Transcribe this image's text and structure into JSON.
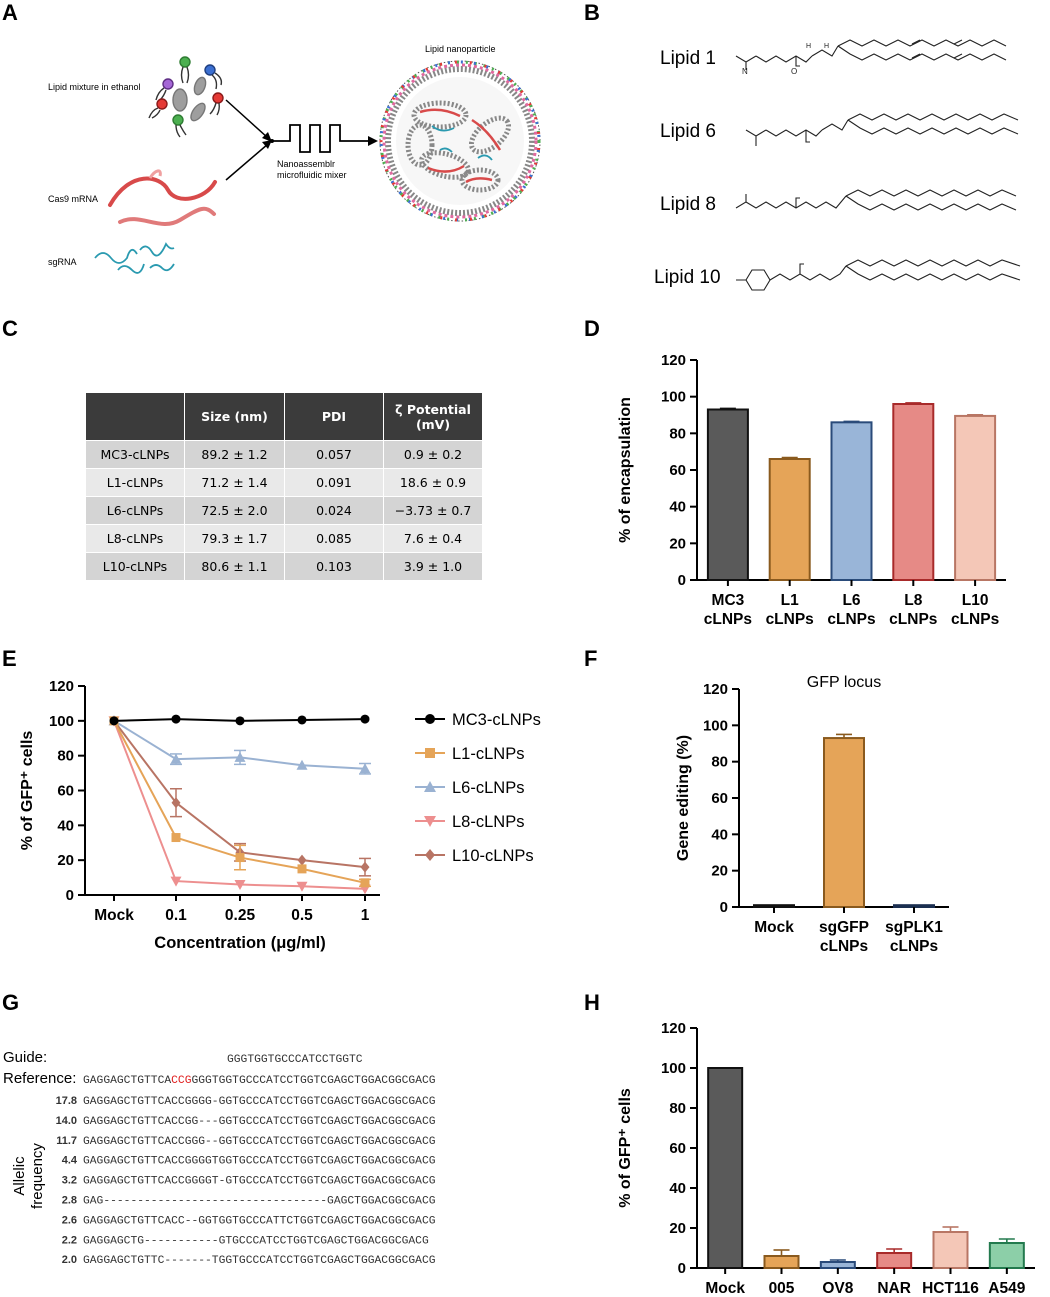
{
  "panels": {
    "a": "A",
    "b": "B",
    "c": "C",
    "d": "D",
    "e": "E",
    "f": "F",
    "g": "G",
    "h": "H"
  },
  "panelA": {
    "lipid_mixture": "Lipid mixture in ethanol",
    "cas9": "Cas9 mRNA",
    "sgrna": "sgRNA",
    "mixer_line1": "Nanoassemblr",
    "mixer_line2": "microfluidic mixer",
    "lnp": "Lipid nanoparticle"
  },
  "panelB": {
    "lipids": [
      "Lipid 1",
      "Lipid 6",
      "Lipid 8",
      "Lipid 10"
    ]
  },
  "panelC": {
    "headers": [
      "",
      "Size (nm)",
      "PDI",
      "ζ Potential (mV)"
    ],
    "rows": [
      {
        "name": "MC3-cLNPs",
        "size": "89.2 ± 1.2",
        "pdi": "0.057",
        "zeta": "0.9 ± 0.2"
      },
      {
        "name": "L1-cLNPs",
        "size": "71.2 ± 1.4",
        "pdi": "0.091",
        "zeta": "18.6 ± 0.9"
      },
      {
        "name": "L6-cLNPs",
        "size": "72.5 ± 2.0",
        "pdi": "0.024",
        "zeta": "−3.73 ± 0.7"
      },
      {
        "name": "L8-cLNPs",
        "size": "79.3 ± 1.7",
        "pdi": "0.085",
        "zeta": "7.6 ± 0.4"
      },
      {
        "name": "L10-cLNPs",
        "size": "80.6 ± 1.1",
        "pdi": "0.103",
        "zeta": "3.9 ± 1.0"
      }
    ]
  },
  "chart_data": [
    {
      "id": "D",
      "type": "bar",
      "title": "",
      "ylabel": "% of encapsulation",
      "ylim": [
        0,
        120
      ],
      "yticks": [
        0,
        20,
        40,
        60,
        80,
        100,
        120
      ],
      "categories": [
        [
          "MC3",
          "cLNPs"
        ],
        [
          "L1",
          "cLNPs"
        ],
        [
          "L6",
          "cLNPs"
        ],
        [
          "L8",
          "cLNPs"
        ],
        [
          "L10",
          "cLNPs"
        ]
      ],
      "values": [
        93,
        66,
        86,
        96,
        89.5
      ],
      "errors": [
        0.6,
        0.8,
        0.5,
        0.6,
        0.6
      ],
      "fills": [
        "#5a5a5a",
        "#e5a458",
        "#99b5d8",
        "#e68a86",
        "#f4c7b7"
      ],
      "strokes": [
        "#111111",
        "#8a5a1e",
        "#2a4b7a",
        "#a82a2a",
        "#b87664"
      ]
    },
    {
      "id": "E",
      "type": "line",
      "title": "",
      "xlabel": "Concentration (μg/ml)",
      "ylabel": "% of GFP⁺ cells",
      "ylim": [
        0,
        120
      ],
      "yticks": [
        0,
        20,
        40,
        60,
        80,
        100,
        120
      ],
      "x": [
        "Mock",
        "0.1",
        "0.25",
        "0.5",
        "1"
      ],
      "series": [
        {
          "name": "MC3-cLNPs",
          "values": [
            100,
            101,
            100,
            100.5,
            101
          ],
          "errors": [
            0,
            0,
            0,
            0,
            0
          ],
          "color": "#000000",
          "marker": "circle"
        },
        {
          "name": "L1-cLNPs",
          "values": [
            100,
            33,
            21.5,
            15,
            7
          ],
          "errors": [
            0,
            0,
            7,
            0,
            2
          ],
          "color": "#e5a458",
          "marker": "square"
        },
        {
          "name": "L6-cLNPs",
          "values": [
            100,
            78,
            79,
            74.5,
            72.5
          ],
          "errors": [
            0,
            3,
            4,
            0,
            3
          ],
          "color": "#9ab2d2",
          "marker": "triangle-up"
        },
        {
          "name": "L8-cLNPs",
          "values": [
            100,
            8,
            6,
            5,
            3.5
          ],
          "errors": [
            0,
            0,
            0,
            0,
            0
          ],
          "color": "#ed8f8f",
          "marker": "triangle-down"
        },
        {
          "name": "L10-cLNPs",
          "values": [
            100,
            53,
            24.5,
            20,
            16
          ],
          "errors": [
            0,
            8,
            5,
            0,
            5
          ],
          "color": "#b87464",
          "marker": "diamond"
        }
      ]
    },
    {
      "id": "F",
      "type": "bar",
      "title": "GFP locus",
      "ylabel": "Gene editing (%)",
      "ylim": [
        0,
        120
      ],
      "yticks": [
        0,
        20,
        40,
        60,
        80,
        100,
        120
      ],
      "categories": [
        [
          "Mock"
        ],
        [
          "sgGFP",
          "cLNPs"
        ],
        [
          "sgPLK1",
          "cLNPs"
        ]
      ],
      "values": [
        1,
        93,
        1
      ],
      "errors": [
        0,
        2,
        0
      ],
      "fills": [
        "#2c2c2c",
        "#e5a458",
        "#2a4b7a"
      ],
      "strokes": [
        "#111111",
        "#8a5a1e",
        "#1b2f50"
      ]
    },
    {
      "id": "H",
      "type": "bar",
      "title": "",
      "ylabel": "% of GFP⁺ cells",
      "ylim": [
        0,
        120
      ],
      "yticks": [
        0,
        20,
        40,
        60,
        80,
        100,
        120
      ],
      "categories": [
        [
          "Mock"
        ],
        [
          "005"
        ],
        [
          "OV8"
        ],
        [
          "NAR"
        ],
        [
          "HCT116"
        ],
        [
          "A549"
        ]
      ],
      "values": [
        100,
        6,
        3,
        7.5,
        18,
        12.5
      ],
      "errors": [
        0,
        3,
        1,
        2,
        2.5,
        2
      ],
      "fills": [
        "#5a5a5a",
        "#e5a458",
        "#99b5d8",
        "#e68a86",
        "#f4c7b7",
        "#8ccfa8"
      ],
      "strokes": [
        "#111111",
        "#8a5a1e",
        "#2a4b7a",
        "#a82a2a",
        "#b87664",
        "#237a4e"
      ]
    }
  ],
  "panelG": {
    "guide_label": "Guide:",
    "guide_seq": "GGGTGGTGCCCATCCTGGTC",
    "ref_label": "Reference:",
    "ref_pre": "GAGGAGCTGTTCA",
    "ref_pam": "CCG",
    "ref_post": "GGGTGGTGCCCATCCTGGTCGAGCTGGACGGCGACG",
    "axis_line1": "Allelic",
    "axis_line2": "frequency",
    "alleles": [
      {
        "freq": "17.8",
        "seq": "GAGGAGCTGTTCACCGGGG-GGTGCCCATCCTGGTCGAGCTGGACGGCGACG"
      },
      {
        "freq": "14.0",
        "seq": "GAGGAGCTGTTCACCGG---GGTGCCCATCCTGGTCGAGCTGGACGGCGACG"
      },
      {
        "freq": "11.7",
        "seq": "GAGGAGCTGTTCACCGGG--GGTGCCCATCCTGGTCGAGCTGGACGGCGACG"
      },
      {
        "freq": "4.4",
        "seq": "GAGGAGCTGTTCACCGGGGTGGTGCCCATCCTGGTCGAGCTGGACGGCGACG"
      },
      {
        "freq": "3.2",
        "seq": "GAGGAGCTGTTCACCGGGGT-GTGCCCATCCTGGTCGAGCTGGACGGCGACG"
      },
      {
        "freq": "2.8",
        "seq": "GAG---------------------------------GAGCTGGACGGCGACG"
      },
      {
        "freq": "2.6",
        "seq": "GAGGAGCTGTTCACC--GGTGGTGCCCATTCTGGTCGAGCTGGACGGCGACG"
      },
      {
        "freq": "2.2",
        "seq": "GAGGAGCTG-----------GTGCCCATCCTGGTCGAGCTGGACGGCGACG"
      },
      {
        "freq": "2.0",
        "seq": "GAGGAGCTGTTC-------TGGTGCCCATCCTGGTCGAGCTGGACGGCGACG"
      }
    ]
  }
}
